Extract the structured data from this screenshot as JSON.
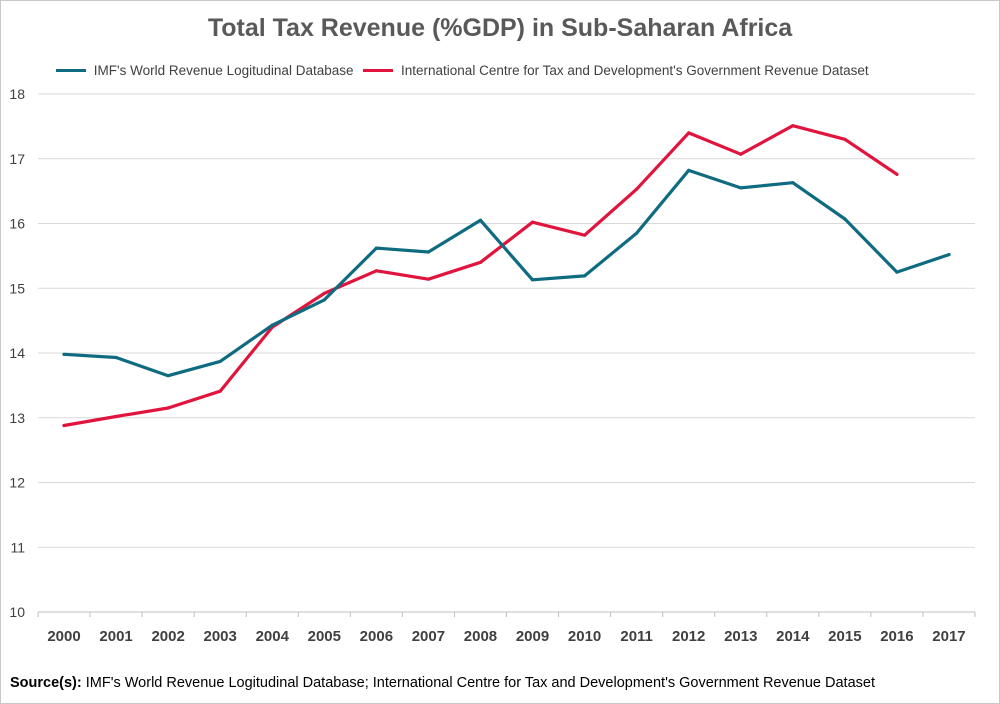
{
  "chart_data": {
    "type": "line",
    "title": "Total Tax Revenue (%GDP) in Sub-Saharan Africa",
    "xlabel": "",
    "ylabel": "",
    "categories": [
      "2000",
      "2001",
      "2002",
      "2003",
      "2004",
      "2005",
      "2006",
      "2007",
      "2008",
      "2009",
      "2010",
      "2011",
      "2012",
      "2013",
      "2014",
      "2015",
      "2016",
      "2017"
    ],
    "ylim": [
      10,
      18
    ],
    "yticks": [
      "10",
      "11",
      "12",
      "13",
      "14",
      "15",
      "16",
      "17",
      "18"
    ],
    "grid": true,
    "legend_position": "top",
    "series": [
      {
        "name": "IMF's World Revenue Logitudinal Database",
        "color": "#0f6b80",
        "values": [
          13.98,
          13.93,
          13.65,
          13.87,
          14.43,
          14.82,
          15.62,
          15.56,
          16.05,
          15.13,
          15.19,
          15.85,
          16.82,
          16.55,
          16.63,
          16.07,
          15.25,
          15.52
        ]
      },
      {
        "name": "International Centre for Tax and Development's Government Revenue Dataset",
        "color": "#e0143c",
        "values": [
          12.88,
          13.02,
          13.15,
          13.41,
          14.4,
          14.92,
          15.27,
          15.14,
          15.4,
          16.02,
          15.82,
          16.53,
          17.4,
          17.07,
          17.51,
          17.3,
          16.76,
          null
        ]
      }
    ]
  },
  "source": {
    "label": "Source(s):",
    "text": " IMF's World Revenue Logitudinal Database; International Centre for Tax and Development's Government Revenue Dataset"
  }
}
